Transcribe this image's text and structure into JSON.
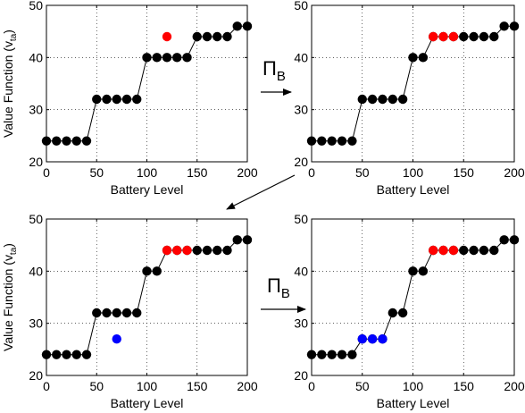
{
  "figure": {
    "operator_label": "Π",
    "operator_sub": "B"
  },
  "chart_data": [
    {
      "type": "scatter",
      "xlabel": "Battery Level",
      "ylabel": "Value Function (v",
      "ylabel_sub": "ta",
      "ylabel_close": ")",
      "xlim": [
        0,
        200
      ],
      "ylim": [
        20,
        50
      ],
      "xticks": [
        0,
        50,
        100,
        150,
        200
      ],
      "yticks": [
        20,
        30,
        40,
        50
      ],
      "grid": true,
      "series": [
        {
          "color": "#000000",
          "connected": true,
          "points": [
            [
              0,
              24
            ],
            [
              10,
              24
            ],
            [
              20,
              24
            ],
            [
              30,
              24
            ],
            [
              40,
              24
            ],
            [
              50,
              32
            ],
            [
              60,
              32
            ],
            [
              70,
              32
            ],
            [
              80,
              32
            ],
            [
              90,
              32
            ],
            [
              100,
              40
            ],
            [
              110,
              40
            ],
            [
              120,
              40
            ],
            [
              130,
              40
            ],
            [
              140,
              40
            ],
            [
              150,
              44
            ],
            [
              160,
              44
            ],
            [
              170,
              44
            ],
            [
              180,
              44
            ],
            [
              190,
              46
            ],
            [
              200,
              46
            ]
          ]
        },
        {
          "color": "#ff0000",
          "connected": false,
          "points": [
            [
              120,
              44
            ]
          ]
        }
      ]
    },
    {
      "type": "scatter",
      "xlabel": "Battery Level",
      "ylabel": "",
      "xlim": [
        0,
        200
      ],
      "ylim": [
        20,
        50
      ],
      "xticks": [
        0,
        50,
        100,
        150,
        200
      ],
      "yticks": [
        20,
        30,
        40,
        50
      ],
      "grid": true,
      "series": [
        {
          "color": "#000000",
          "connected": true,
          "points": [
            [
              0,
              24
            ],
            [
              10,
              24
            ],
            [
              20,
              24
            ],
            [
              30,
              24
            ],
            [
              40,
              24
            ],
            [
              50,
              32
            ],
            [
              60,
              32
            ],
            [
              70,
              32
            ],
            [
              80,
              32
            ],
            [
              90,
              32
            ],
            [
              100,
              40
            ],
            [
              110,
              40
            ],
            [
              120,
              44
            ],
            [
              130,
              44
            ],
            [
              140,
              44
            ],
            [
              150,
              44
            ],
            [
              160,
              44
            ],
            [
              170,
              44
            ],
            [
              180,
              44
            ],
            [
              190,
              46
            ],
            [
              200,
              46
            ]
          ]
        },
        {
          "color": "#ff0000",
          "connected": false,
          "points": [
            [
              120,
              44
            ],
            [
              130,
              44
            ],
            [
              140,
              44
            ]
          ]
        }
      ]
    },
    {
      "type": "scatter",
      "xlabel": "Battery Level",
      "ylabel": "Value Function (v",
      "ylabel_sub": "ta",
      "ylabel_close": ")",
      "xlim": [
        0,
        200
      ],
      "ylim": [
        20,
        50
      ],
      "xticks": [
        0,
        50,
        100,
        150,
        200
      ],
      "yticks": [
        20,
        30,
        40,
        50
      ],
      "grid": true,
      "series": [
        {
          "color": "#000000",
          "connected": true,
          "points": [
            [
              0,
              24
            ],
            [
              10,
              24
            ],
            [
              20,
              24
            ],
            [
              30,
              24
            ],
            [
              40,
              24
            ],
            [
              50,
              32
            ],
            [
              60,
              32
            ],
            [
              70,
              32
            ],
            [
              80,
              32
            ],
            [
              90,
              32
            ],
            [
              100,
              40
            ],
            [
              110,
              40
            ],
            [
              120,
              44
            ],
            [
              130,
              44
            ],
            [
              140,
              44
            ],
            [
              150,
              44
            ],
            [
              160,
              44
            ],
            [
              170,
              44
            ],
            [
              180,
              44
            ],
            [
              190,
              46
            ],
            [
              200,
              46
            ]
          ]
        },
        {
          "color": "#ff0000",
          "connected": false,
          "points": [
            [
              120,
              44
            ],
            [
              130,
              44
            ],
            [
              140,
              44
            ]
          ]
        },
        {
          "color": "#0000ff",
          "connected": false,
          "points": [
            [
              70,
              27
            ]
          ]
        }
      ]
    },
    {
      "type": "scatter",
      "xlabel": "Battery Level",
      "ylabel": "",
      "xlim": [
        0,
        200
      ],
      "ylim": [
        20,
        50
      ],
      "xticks": [
        0,
        50,
        100,
        150,
        200
      ],
      "yticks": [
        20,
        30,
        40,
        50
      ],
      "grid": true,
      "series": [
        {
          "color": "#000000",
          "connected": true,
          "points": [
            [
              0,
              24
            ],
            [
              10,
              24
            ],
            [
              20,
              24
            ],
            [
              30,
              24
            ],
            [
              40,
              24
            ],
            [
              50,
              27
            ],
            [
              60,
              27
            ],
            [
              70,
              27
            ],
            [
              80,
              32
            ],
            [
              90,
              32
            ],
            [
              100,
              40
            ],
            [
              110,
              40
            ],
            [
              120,
              44
            ],
            [
              130,
              44
            ],
            [
              140,
              44
            ],
            [
              150,
              44
            ],
            [
              160,
              44
            ],
            [
              170,
              44
            ],
            [
              180,
              44
            ],
            [
              190,
              46
            ],
            [
              200,
              46
            ]
          ]
        },
        {
          "color": "#ff0000",
          "connected": false,
          "points": [
            [
              120,
              44
            ],
            [
              130,
              44
            ],
            [
              140,
              44
            ]
          ]
        },
        {
          "color": "#0000ff",
          "connected": false,
          "points": [
            [
              50,
              27
            ],
            [
              60,
              27
            ],
            [
              70,
              27
            ]
          ]
        }
      ]
    }
  ]
}
